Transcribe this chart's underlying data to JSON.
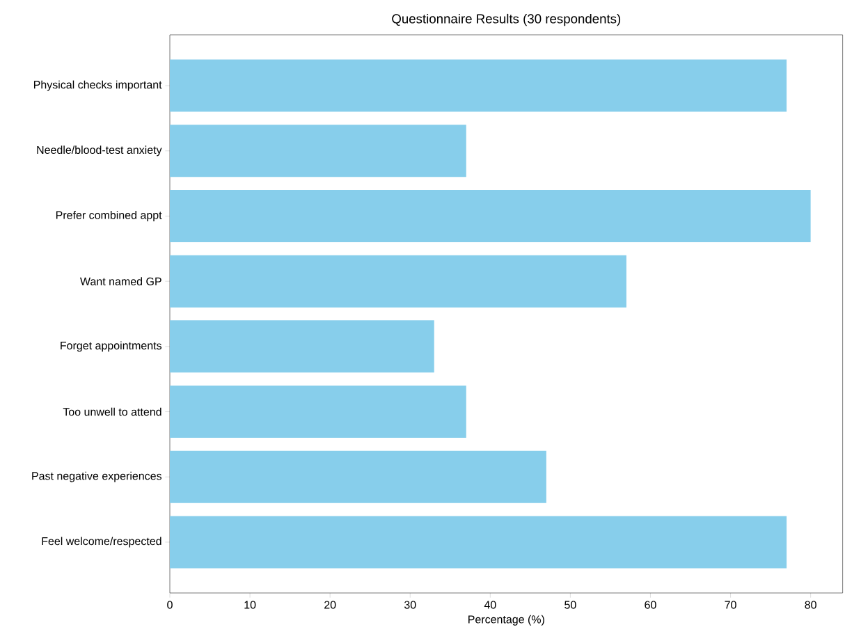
{
  "chart_data": {
    "type": "bar",
    "orientation": "horizontal",
    "title": "Questionnaire Results (30 respondents)",
    "xlabel": "Percentage (%)",
    "categories": [
      "Physical checks important",
      "Needle/blood-test anxiety",
      "Prefer combined appt",
      "Want named GP",
      "Forget appointments",
      "Too unwell to attend",
      "Past negative experiences",
      "Feel welcome/respected"
    ],
    "values": [
      77,
      37,
      80,
      57,
      33,
      37,
      47,
      77
    ],
    "color": "#87ceeb",
    "xlim": [
      0,
      84
    ],
    "xticks": [
      0,
      10,
      20,
      30,
      40,
      50,
      60,
      70,
      80
    ],
    "grid": false
  }
}
